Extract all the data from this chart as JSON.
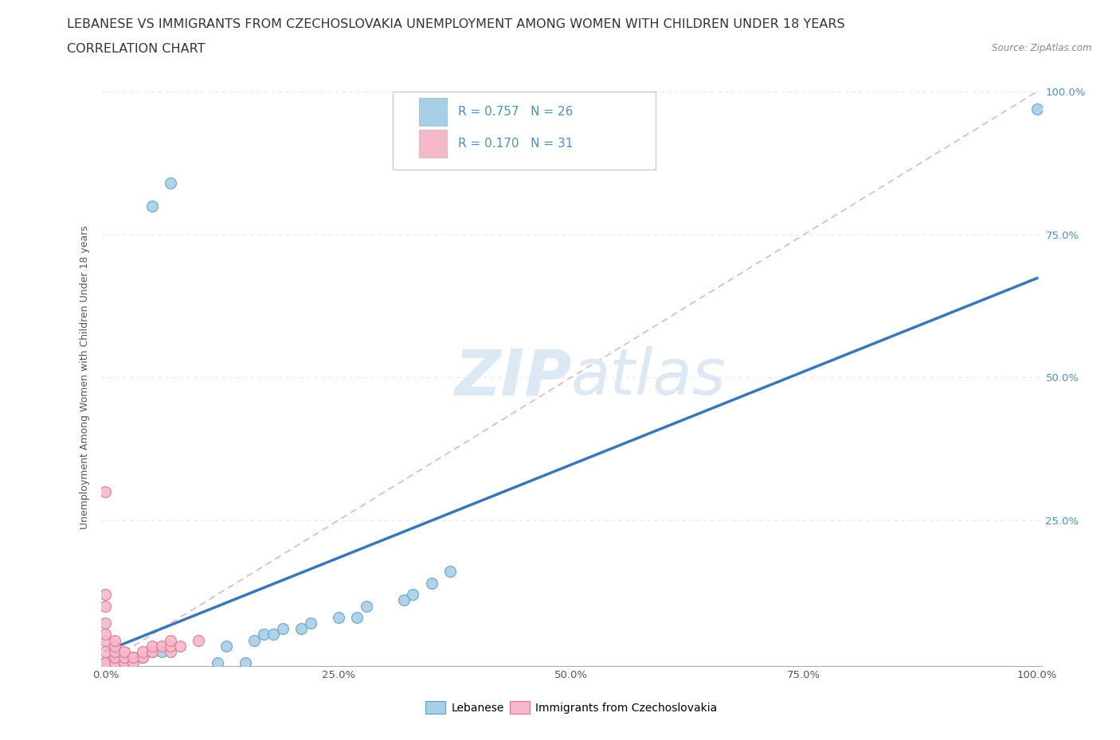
{
  "title_line1": "LEBANESE VS IMMIGRANTS FROM CZECHOSLOVAKIA UNEMPLOYMENT AMONG WOMEN WITH CHILDREN UNDER 18 YEARS",
  "title_line2": "CORRELATION CHART",
  "source_text": "Source: ZipAtlas.com",
  "ylabel": "Unemployment Among Women with Children Under 18 years",
  "xlim": [
    -0.005,
    1.005
  ],
  "ylim": [
    -0.005,
    1.005
  ],
  "xticks": [
    0.0,
    0.25,
    0.5,
    0.75,
    1.0
  ],
  "yticks": [
    0.0,
    0.25,
    0.5,
    0.75,
    1.0
  ],
  "xticklabels": [
    "0.0%",
    "25.0%",
    "50.0%",
    "75.0%",
    "100.0%"
  ],
  "yticklabels_right": [
    "",
    "25.0%",
    "50.0%",
    "75.0%",
    "100.0%"
  ],
  "legend_label1": "Lebanese",
  "legend_label2": "Immigrants from Czechoslovakia",
  "R1": 0.757,
  "N1": 26,
  "R2": 0.17,
  "N2": 31,
  "blue_color": "#a8cfe8",
  "blue_edge_color": "#5a9ec9",
  "pink_color": "#f5b8c8",
  "pink_edge_color": "#e07090",
  "regression_line_color": "#3878b8",
  "diagonal_line_color": "#e0a0b0",
  "background_color": "#ffffff",
  "grid_color": "#e8e8e8",
  "watermark_color": "#dde8f5",
  "title_fontsize": 11.5,
  "subtitle_fontsize": 11.5,
  "axis_label_fontsize": 9,
  "tick_fontsize": 9.5,
  "legend_fontsize": 11,
  "blue_scatter_x": [
    0.0,
    0.01,
    0.02,
    0.03,
    0.04,
    0.05,
    0.05,
    0.06,
    0.07,
    0.12,
    0.13,
    0.15,
    0.16,
    0.17,
    0.18,
    0.19,
    0.21,
    0.22,
    0.25,
    0.27,
    0.28,
    0.32,
    0.33,
    0.35,
    0.37,
    1.0
  ],
  "blue_scatter_y": [
    0.0,
    0.01,
    0.0,
    0.01,
    0.01,
    0.02,
    0.8,
    0.02,
    0.84,
    0.0,
    0.03,
    0.0,
    0.04,
    0.05,
    0.05,
    0.06,
    0.06,
    0.07,
    0.08,
    0.08,
    0.1,
    0.11,
    0.12,
    0.14,
    0.16,
    0.97
  ],
  "pink_scatter_x": [
    0.0,
    0.0,
    0.0,
    0.0,
    0.0,
    0.0,
    0.0,
    0.0,
    0.0,
    0.0,
    0.0,
    0.01,
    0.01,
    0.01,
    0.01,
    0.01,
    0.02,
    0.02,
    0.02,
    0.03,
    0.03,
    0.04,
    0.04,
    0.05,
    0.05,
    0.06,
    0.07,
    0.07,
    0.07,
    0.08,
    0.1
  ],
  "pink_scatter_y": [
    0.0,
    0.0,
    0.0,
    0.0,
    0.02,
    0.04,
    0.05,
    0.07,
    0.1,
    0.12,
    0.3,
    0.0,
    0.01,
    0.02,
    0.03,
    0.04,
    0.0,
    0.01,
    0.02,
    0.0,
    0.01,
    0.01,
    0.02,
    0.02,
    0.03,
    0.03,
    0.02,
    0.03,
    0.04,
    0.03,
    0.04
  ],
  "blue_scatter_size": 100,
  "pink_scatter_size": 100,
  "regression_linewidth": 2.5,
  "diagonal_linewidth": 1.0
}
